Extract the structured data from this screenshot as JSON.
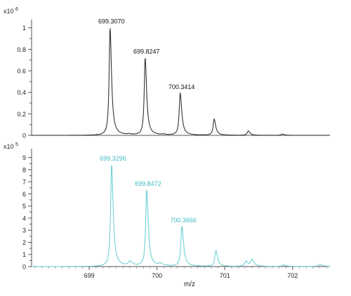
{
  "chart_data": [
    {
      "type": "line",
      "scale_label": "x10",
      "scale_exponent": "6",
      "xlim": [
        698.15,
        702.55
      ],
      "ylim": [
        0,
        1.05
      ],
      "y_ticks": [
        {
          "value": 0,
          "label": "0"
        },
        {
          "value": 0.2,
          "label": "0.2"
        },
        {
          "value": 0.4,
          "label": "0.4"
        },
        {
          "value": 0.6,
          "label": "0.6"
        },
        {
          "value": 0.8,
          "label": "0.8"
        },
        {
          "value": 1,
          "label": "1"
        }
      ],
      "line_color": "#333333",
      "label_color": "#111111",
      "peaks": [
        {
          "x": 699.307,
          "y": 1.0,
          "w": 0.016,
          "label": "699.3070"
        },
        {
          "x": 699.8247,
          "y": 0.72,
          "w": 0.016,
          "label": "699.8247"
        },
        {
          "x": 700.3414,
          "y": 0.39,
          "w": 0.017,
          "label": "700.3414"
        },
        {
          "x": 700.842,
          "y": 0.15,
          "w": 0.017
        },
        {
          "x": 701.345,
          "y": 0.04,
          "w": 0.018
        },
        {
          "x": 701.847,
          "y": 0.012,
          "w": 0.02
        },
        {
          "x": 699.58,
          "y": 0.008,
          "w": 0.02
        },
        {
          "x": 700.09,
          "y": 0.006,
          "w": 0.02
        }
      ]
    },
    {
      "type": "line",
      "scale_label": "x10",
      "scale_exponent": "5",
      "xlim": [
        698.15,
        702.55
      ],
      "ylim": [
        0,
        9.5
      ],
      "y_ticks": [
        {
          "value": 0,
          "label": "0"
        },
        {
          "value": 1,
          "label": "1"
        },
        {
          "value": 2,
          "label": "2"
        },
        {
          "value": 3,
          "label": "3"
        },
        {
          "value": 4,
          "label": "4"
        },
        {
          "value": 5,
          "label": "5"
        },
        {
          "value": 6,
          "label": "6"
        },
        {
          "value": 7,
          "label": "7"
        },
        {
          "value": 8,
          "label": "8"
        },
        {
          "value": 9,
          "label": "9"
        }
      ],
      "line_color": "#6fd0d4",
      "label_color": "#3fbcc2",
      "peaks": [
        {
          "x": 699.3296,
          "y": 8.4,
          "w": 0.017,
          "label": "699.3296"
        },
        {
          "x": 699.8472,
          "y": 6.3,
          "w": 0.017,
          "label": "699.8472"
        },
        {
          "x": 700.3666,
          "y": 3.3,
          "w": 0.018,
          "label": "700.3666"
        },
        {
          "x": 700.868,
          "y": 1.3,
          "w": 0.018
        },
        {
          "x": 701.31,
          "y": 0.42,
          "w": 0.02
        },
        {
          "x": 701.4,
          "y": 0.55,
          "w": 0.022
        },
        {
          "x": 701.87,
          "y": 0.12,
          "w": 0.025
        },
        {
          "x": 702.4,
          "y": 0.15,
          "w": 0.03
        },
        {
          "x": 699.6,
          "y": 0.35,
          "w": 0.03
        },
        {
          "x": 700.05,
          "y": 0.18,
          "w": 0.03
        }
      ]
    }
  ],
  "x_axis": {
    "label": "m/z",
    "ticks": [
      {
        "value": 699,
        "label": "699"
      },
      {
        "value": 700,
        "label": "700"
      },
      {
        "value": 701,
        "label": "701"
      },
      {
        "value": 702,
        "label": "702"
      }
    ]
  }
}
